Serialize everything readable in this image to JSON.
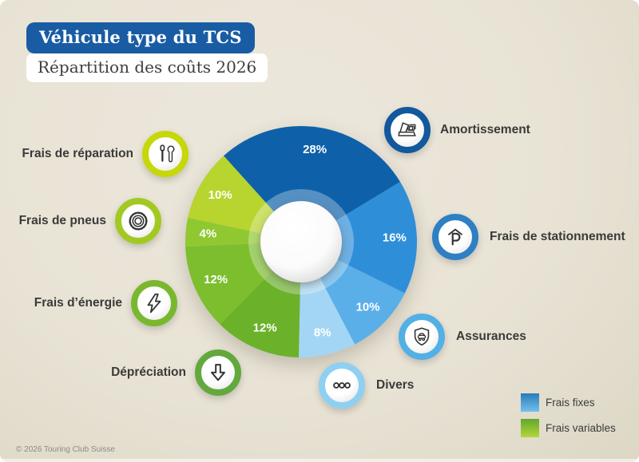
{
  "header": {
    "title_badge": "Véhicule type du TCS",
    "subtitle_badge": "Répartition des coûts 2026"
  },
  "footer": {
    "copyright": "© 2026 Touring Club Suisse"
  },
  "colors": {
    "background": "#e9e4d6",
    "title_badge_bg": "#195ca4",
    "title_badge_text": "#ffffff",
    "subtitle_badge_bg": "#ffffff",
    "subtitle_badge_text": "#3e3e3d",
    "callout_label_text": "#3a3a39",
    "pct_label_text": "#ffffff"
  },
  "legend": {
    "items": [
      {
        "label": "Frais fixes",
        "color_top": "#2a7cb8",
        "color_bottom": "#74c0ee"
      },
      {
        "label": "Frais variables",
        "color_top": "#63a72e",
        "color_bottom": "#b4d63a"
      }
    ]
  },
  "chart_data": {
    "type": "pie",
    "donut": true,
    "title": "Répartition des coûts 2026",
    "units": "%",
    "total": 100,
    "start_angle_deg": -42,
    "legend_position": "bottom-right",
    "slices": [
      {
        "label": "Amortissement",
        "value": 28,
        "pct_label": "28%",
        "color": "#0e61a9",
        "ring_color": "#11589d",
        "icon": "car-value-icon",
        "group": "Frais fixes"
      },
      {
        "label": "Frais de stationnement",
        "value": 16,
        "pct_label": "16%",
        "color": "#2f8ed8",
        "ring_color": "#2e7fc4",
        "icon": "parking-icon",
        "group": "Frais fixes"
      },
      {
        "label": "Assurances",
        "value": 10,
        "pct_label": "10%",
        "color": "#5aafe8",
        "ring_color": "#52b0e4",
        "icon": "shield-car-icon",
        "group": "Frais fixes"
      },
      {
        "label": "Divers",
        "value": 8,
        "pct_label": "8%",
        "color": "#a3d6f4",
        "ring_color": "#8ed0f2",
        "icon": "three-dots-icon",
        "group": "Frais fixes"
      },
      {
        "label": "Dépréciation",
        "value": 12,
        "pct_label": "12%",
        "color": "#6bb12a",
        "ring_color": "#63a83c",
        "icon": "arrow-down-icon",
        "group": "Frais variables"
      },
      {
        "label": "Frais d’énergie",
        "value": 12,
        "pct_label": "12%",
        "color": "#7cbe2e",
        "ring_color": "#79b82e",
        "icon": "lightning-bolt-icon",
        "group": "Frais variables"
      },
      {
        "label": "Frais de pneus",
        "value": 4,
        "pct_label": "4%",
        "color": "#90c832",
        "ring_color": "#a2c922",
        "icon": "tire-icon",
        "group": "Frais variables"
      },
      {
        "label": "Frais de réparation",
        "value": 10,
        "pct_label": "10%",
        "color": "#b8d42e",
        "ring_color": "#c6d70a",
        "icon": "tools-icon",
        "group": "Frais variables"
      }
    ]
  }
}
